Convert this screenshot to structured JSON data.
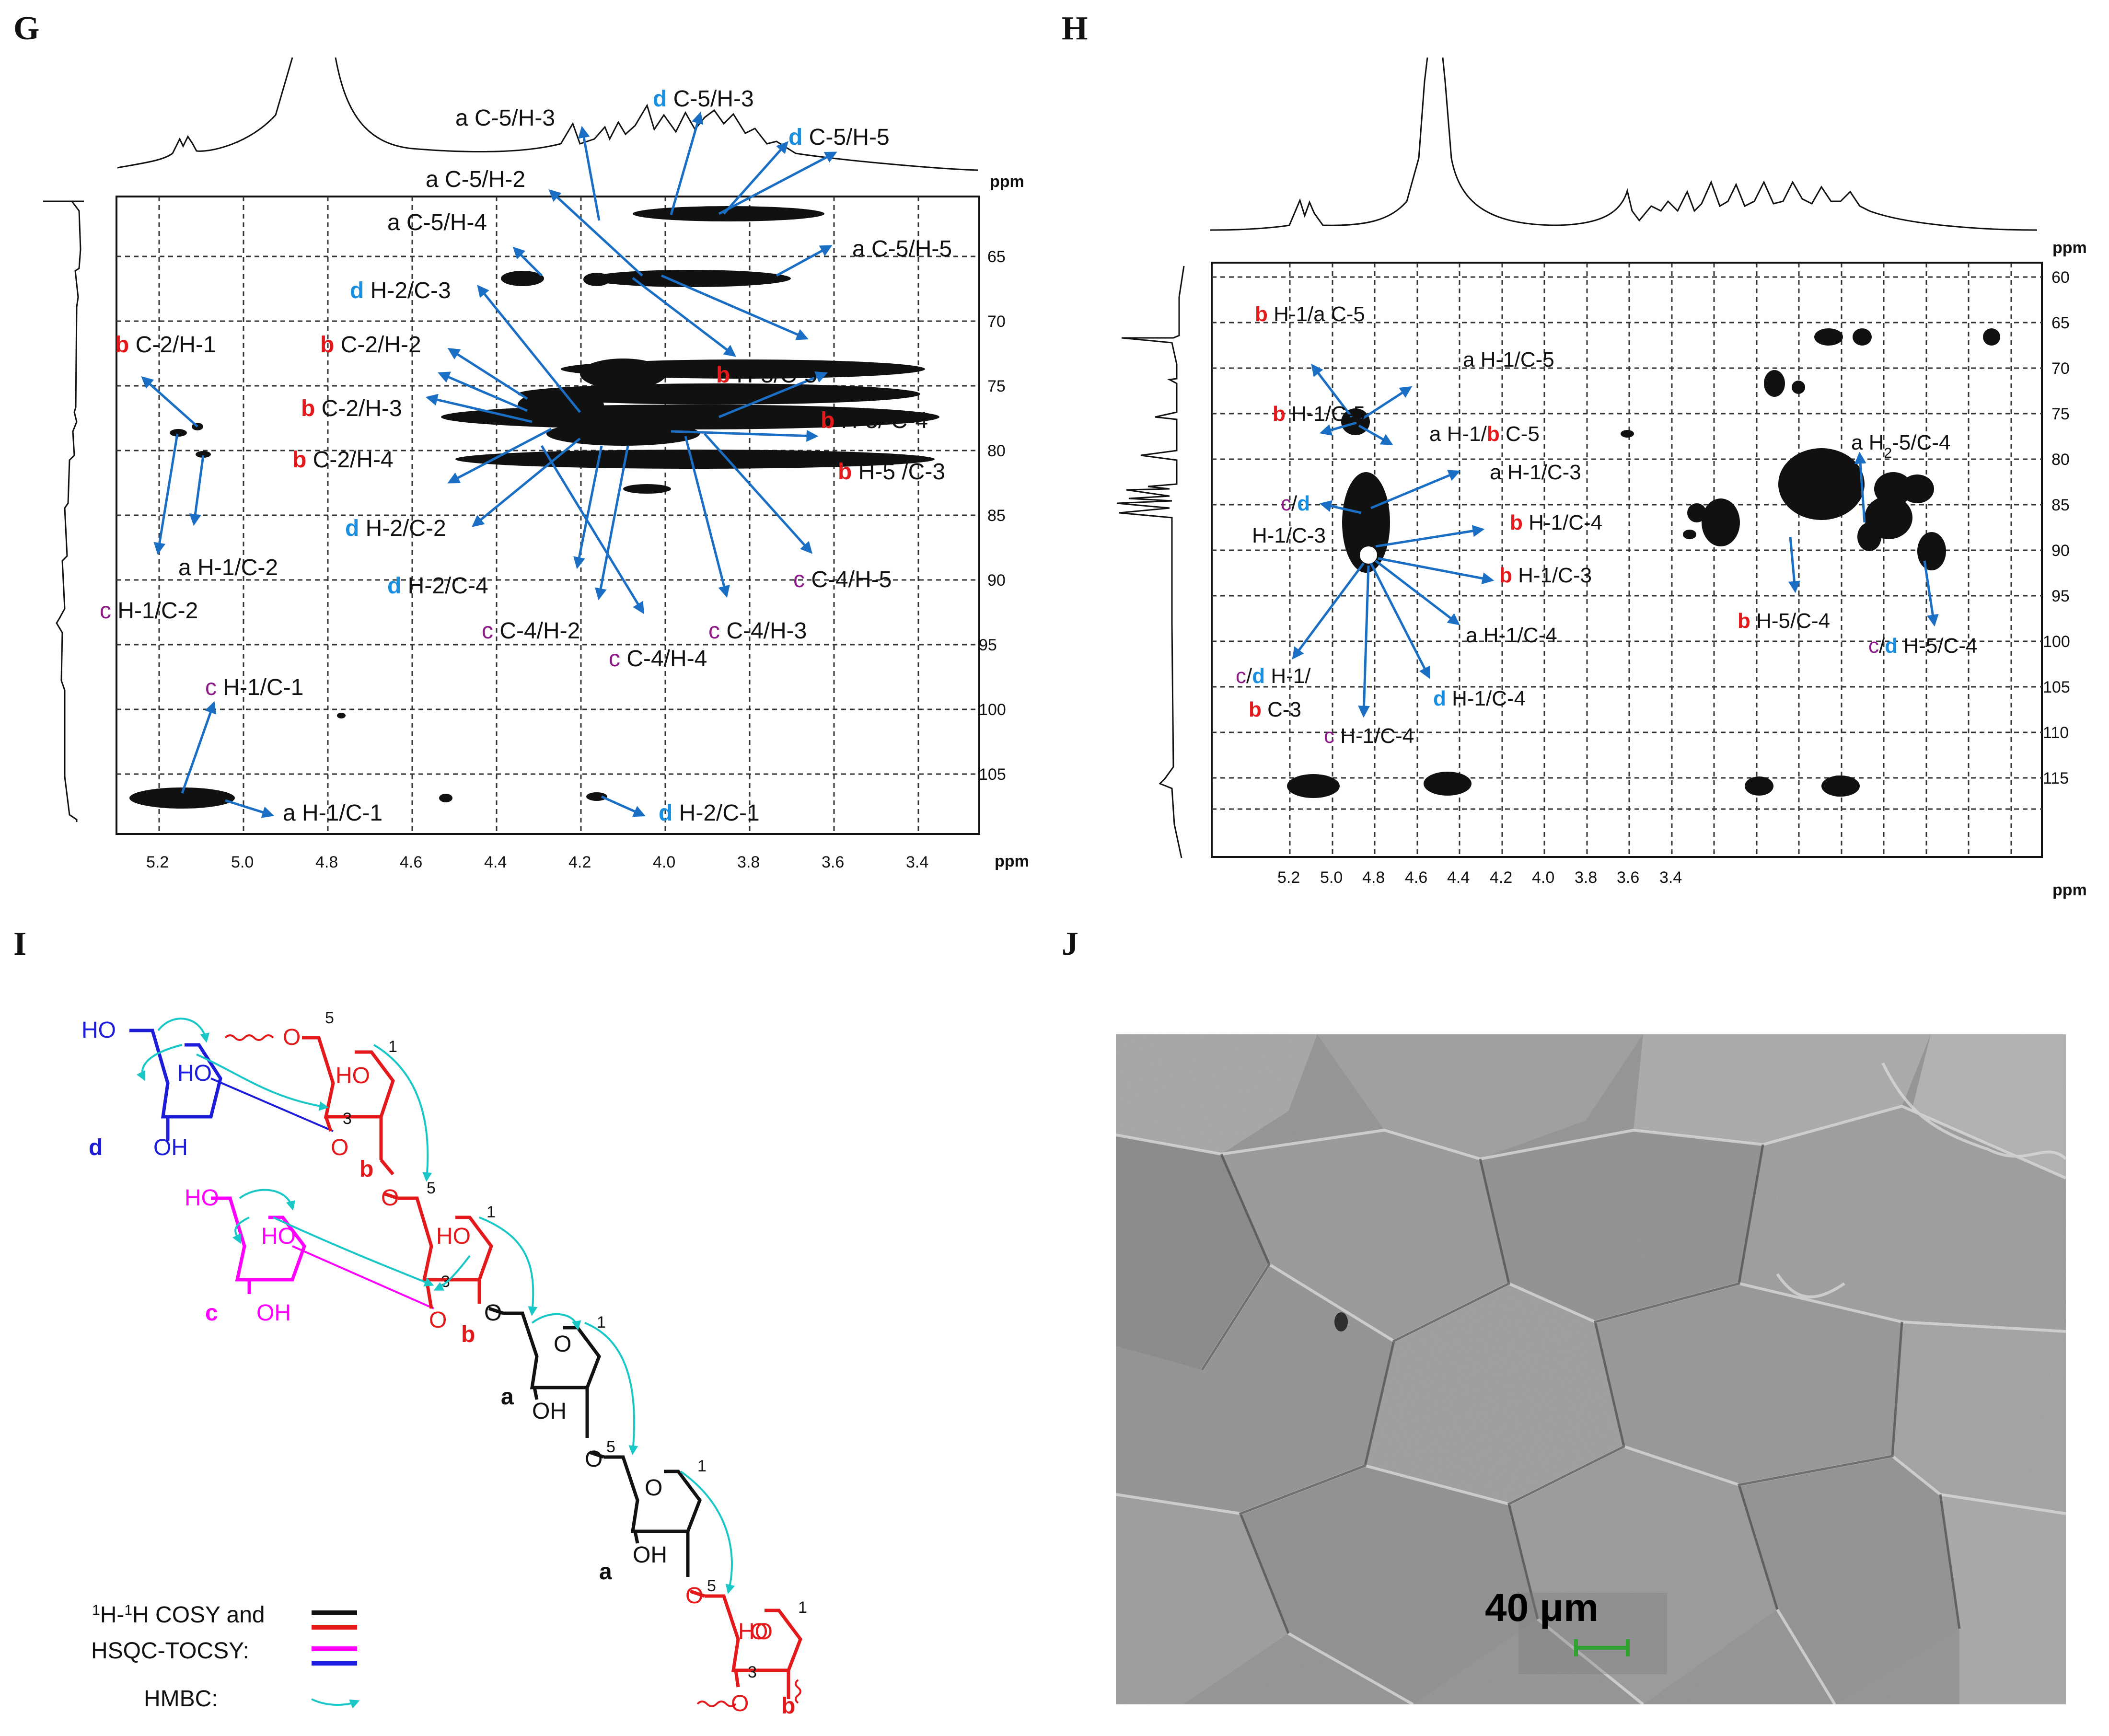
{
  "panels": {
    "G": "G",
    "H": "H",
    "I": "I",
    "J": "J"
  },
  "panel_G": {
    "ppm_x": "ppm",
    "ppm_y": "ppm",
    "x_ticks": [
      "5.2",
      "5.0",
      "4.8",
      "4.6",
      "4.4",
      "4.2",
      "4.0",
      "3.8",
      "3.6",
      "3.4"
    ],
    "y_ticks": [
      "65",
      "70",
      "75",
      "80",
      "85",
      "90",
      "95",
      "100",
      "105"
    ],
    "labels": [
      {
        "pre": "a",
        "pre_color": "black",
        "text": " C-5/H-3"
      },
      {
        "pre": "d",
        "pre_color": "blue",
        "text": " C-5/H-3"
      },
      {
        "pre": "d",
        "pre_color": "blue",
        "text": " C-5/H-5"
      },
      {
        "pre": "a",
        "pre_color": "black",
        "text": " C-5/H-2"
      },
      {
        "pre": "a",
        "pre_color": "black",
        "text": " C-5/H-4"
      },
      {
        "pre": "a",
        "pre_color": "black",
        "text": " C-5/H-5"
      },
      {
        "pre": "d",
        "pre_color": "blue",
        "text": " H-2/C-3"
      },
      {
        "pre": "b",
        "pre_color": "red",
        "text": " C-2/H-1"
      },
      {
        "pre": "b",
        "pre_color": "red",
        "text": " C-2/H-2"
      },
      {
        "pre": "b",
        "pre_color": "red",
        "text": " H-5/C-5"
      },
      {
        "pre": "b",
        "pre_color": "red",
        "text": " C-2/H-3"
      },
      {
        "pre": "b",
        "pre_color": "red",
        "text": " H-5/ C-4"
      },
      {
        "pre": "b",
        "pre_color": "red",
        "text": " C-2/H-4"
      },
      {
        "pre": "b",
        "pre_color": "red",
        "text": " H-5 /C-3"
      },
      {
        "pre": "d",
        "pre_color": "blue",
        "text": " H-2/C-2"
      },
      {
        "pre": "a",
        "pre_color": "black",
        "text": " H-1/C-2"
      },
      {
        "pre": "d",
        "pre_color": "blue",
        "text": " H-2/C-4"
      },
      {
        "pre": "c",
        "pre_color": "purple",
        "text": " C-4/H-5"
      },
      {
        "pre": "c",
        "pre_color": "purple",
        "text": " H-1/C-2"
      },
      {
        "pre": "c",
        "pre_color": "purple",
        "text": " C-4/H-2"
      },
      {
        "pre": "c",
        "pre_color": "purple",
        "text": " C-4/H-3"
      },
      {
        "pre": "c",
        "pre_color": "purple",
        "text": " C-4/H-4"
      },
      {
        "pre": "c",
        "pre_color": "purple",
        "text": " H-1/C-1"
      },
      {
        "pre": "a",
        "pre_color": "black",
        "text": " H-1/C-1"
      },
      {
        "pre": "d",
        "pre_color": "blue",
        "text": " H-2/C-1"
      }
    ]
  },
  "panel_H": {
    "ppm_x": "ppm",
    "ppm_y": "ppm",
    "x_ticks": [
      "5.2",
      "5.0",
      "4.8",
      "4.6",
      "4.4",
      "4.2",
      "4.0",
      "3.8",
      "3.6",
      "3.4"
    ],
    "y_ticks": [
      "60",
      "65",
      "70",
      "75",
      "80",
      "85",
      "90",
      "95",
      "100",
      "105",
      "110",
      "115"
    ],
    "labels": {
      "h1": "H-1/",
      "a": "a",
      "c5": " C-5",
      "b_h1_c5_a": "a H-1/C-5",
      "b_h1_c5": " H-1/C-5",
      "a_h1_b": "a H-1/",
      "a_h1_c3": "a H-1/C-3",
      "cd_slash": "/",
      "h1_c3_left": "H-1/C-3",
      "b_h1_c4": " H-1/C-4",
      "b_h1_c3": " H-1/C-3",
      "a_h1_c4": "a H-1/C-4",
      "cd_h1": " H-1/",
      "b_c3": " C-3",
      "d_h1_c4": " H-1/C-4",
      "c_h1_c4": " H-1/C-4",
      "a_h2": "a H",
      "sub2": "2",
      "h2_rest": "-5/C-4",
      "b_h5_c4": " H-5/C-4",
      "cd_h5_c4": " H-5/C-4",
      "b": "b",
      "c": "c",
      "d": "d"
    }
  },
  "panel_I": {
    "HO": "HO",
    "OH": "OH",
    "O": "O",
    "residue_d": "d",
    "residue_c": "c",
    "residue_b": "b",
    "residue_a": "a",
    "pos1": "1",
    "pos3": "3",
    "pos5": "5",
    "legend_cosy_sup1": "1",
    "legend_cosy_h1": "H-",
    "legend_cosy_sup2": "1",
    "legend_cosy_h2": "H COSY and",
    "legend_hsqc": "HSQC-TOCSY:",
    "legend_hmbc": "HMBC:",
    "colors": {
      "red": "#e3191c",
      "blue": "#1c1cd9",
      "magenta": "#ff00ff",
      "black": "#111111",
      "cyan": "#19c7c7"
    }
  },
  "panel_J": {
    "scale_label": "40 μm",
    "scale_color": "#2fa22f"
  }
}
